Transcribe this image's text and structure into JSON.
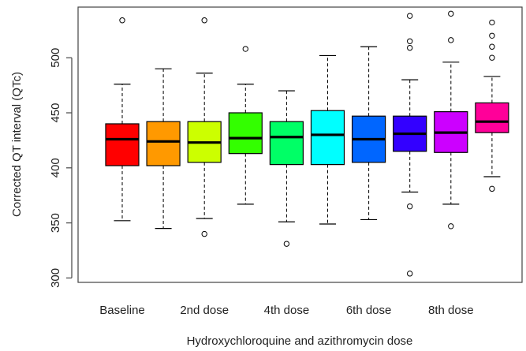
{
  "chart_data": {
    "type": "boxplot",
    "xlabel": "Hydroxychloroquine and azithromycin dose",
    "ylabel": "Corrected QT interval (QTc)",
    "ylim": [
      296,
      546
    ],
    "yticks": [
      300,
      350,
      400,
      450,
      500
    ],
    "xtick_labels": [
      "Baseline",
      "",
      "2nd dose",
      "",
      "4th dose",
      "",
      "6th dose",
      "",
      "8th dose",
      ""
    ],
    "grid": false,
    "legend": "none",
    "boxes": [
      {
        "color": "#ff0000",
        "whisker_low": 352,
        "q1": 402,
        "median": 426,
        "q3": 440,
        "whisker_high": 476,
        "outliers": [
          534
        ]
      },
      {
        "color": "#ff9900",
        "whisker_low": 345,
        "q1": 402,
        "median": 424,
        "q3": 442,
        "whisker_high": 490,
        "outliers": []
      },
      {
        "color": "#ccff00",
        "whisker_low": 354,
        "q1": 405,
        "median": 423,
        "q3": 442,
        "whisker_high": 486,
        "outliers": [
          340,
          534
        ]
      },
      {
        "color": "#33ff00",
        "whisker_low": 367,
        "q1": 413,
        "median": 427,
        "q3": 450,
        "whisker_high": 476,
        "outliers": [
          508
        ]
      },
      {
        "color": "#00ff66",
        "whisker_low": 351,
        "q1": 403,
        "median": 428,
        "q3": 442,
        "whisker_high": 470,
        "outliers": [
          331
        ]
      },
      {
        "color": "#00ffff",
        "whisker_low": 349,
        "q1": 403,
        "median": 430,
        "q3": 452,
        "whisker_high": 502,
        "outliers": []
      },
      {
        "color": "#0066ff",
        "whisker_low": 353,
        "q1": 405,
        "median": 426,
        "q3": 447,
        "whisker_high": 510,
        "outliers": []
      },
      {
        "color": "#3300ff",
        "whisker_low": 378,
        "q1": 415,
        "median": 431,
        "q3": 447,
        "whisker_high": 480,
        "outliers": [
          304,
          365,
          509,
          515,
          538
        ]
      },
      {
        "color": "#cc00ff",
        "whisker_low": 367,
        "q1": 414,
        "median": 432,
        "q3": 451,
        "whisker_high": 496,
        "outliers": [
          347,
          516,
          540
        ]
      },
      {
        "color": "#ff0099",
        "whisker_low": 392,
        "q1": 432,
        "median": 442,
        "q3": 459,
        "whisker_high": 483,
        "outliers": [
          381,
          500,
          510,
          520,
          532
        ]
      }
    ]
  }
}
